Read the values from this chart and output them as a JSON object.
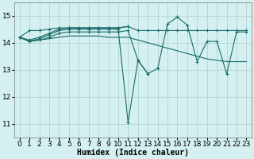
{
  "bg_color": "#d4f0f0",
  "grid_color": "#b8d8d8",
  "line_color": "#1a6b6b",
  "xlabel": "Humidex (Indice chaleur)",
  "xlabel_fontsize": 7,
  "tick_fontsize": 6.5,
  "ylim": [
    10.5,
    15.5
  ],
  "xlim": [
    -0.5,
    23.5
  ],
  "yticks": [
    11,
    12,
    13,
    14,
    15
  ],
  "xticks": [
    0,
    1,
    2,
    3,
    4,
    5,
    6,
    7,
    8,
    9,
    10,
    11,
    12,
    13,
    14,
    15,
    16,
    17,
    18,
    19,
    20,
    21,
    22,
    23
  ],
  "series_top": [
    14.2,
    14.45,
    14.45,
    14.5,
    14.55,
    14.55,
    14.55,
    14.55,
    14.55,
    14.55,
    14.55,
    14.6,
    14.45,
    14.45,
    14.45,
    14.45,
    14.45,
    14.45,
    14.45,
    14.45,
    14.45,
    14.45,
    14.45,
    14.45
  ],
  "series_decline": [
    14.2,
    14.05,
    14.1,
    14.15,
    14.2,
    14.25,
    14.25,
    14.25,
    14.25,
    14.2,
    14.2,
    14.2,
    14.1,
    14.0,
    13.9,
    13.8,
    13.7,
    13.6,
    13.5,
    13.4,
    13.35,
    13.3,
    13.3,
    13.3
  ],
  "series_main": [
    14.2,
    14.05,
    14.15,
    14.3,
    14.45,
    14.5,
    14.5,
    14.5,
    14.5,
    14.5,
    14.5,
    11.05,
    13.35,
    12.85,
    13.05,
    14.7,
    14.95,
    14.65,
    13.3,
    14.05,
    14.05,
    12.85,
    14.4,
    14.4
  ],
  "series_upper": [
    14.2,
    14.1,
    14.2,
    14.35,
    14.5,
    14.55,
    14.55,
    14.55,
    14.55,
    14.55,
    14.55,
    14.6,
    null,
    null,
    null,
    null,
    null,
    null,
    null,
    null,
    null,
    null,
    null,
    null
  ],
  "series_mid": [
    14.2,
    14.05,
    14.1,
    14.2,
    14.35,
    14.4,
    14.4,
    14.4,
    14.4,
    14.4,
    14.4,
    14.45,
    13.35,
    12.85,
    null,
    null,
    null,
    null,
    null,
    null,
    null,
    null,
    null,
    null
  ]
}
